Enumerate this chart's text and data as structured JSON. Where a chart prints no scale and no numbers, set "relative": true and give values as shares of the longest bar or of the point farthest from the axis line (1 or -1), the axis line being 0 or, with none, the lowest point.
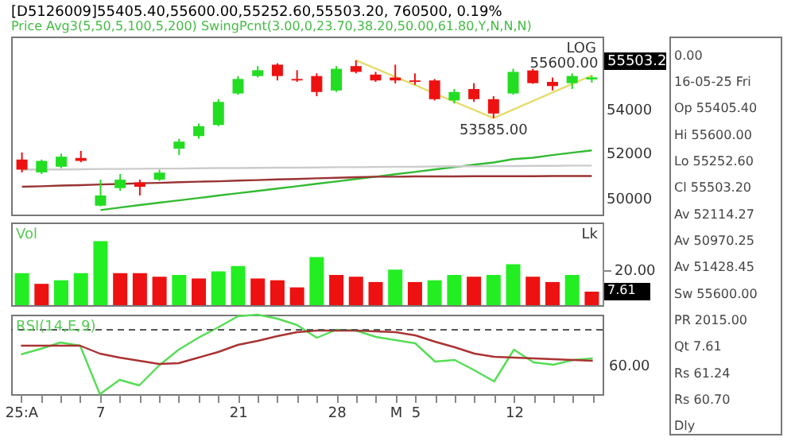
{
  "chart_data": [
    {
      "type": "candlestick",
      "title": "[D5126009]55405.40,55600.00,55252.60,55503.20, 760500, 0.19%",
      "subtitle": "Price Avg3(5,50,5,100,5,200) SwingPcnt(3.00,0,23.70,38.20,50.00,61.80,Y,N,N,N)",
      "categories": [
        null,
        null,
        null,
        null,
        null,
        null,
        null,
        null,
        null,
        null,
        null,
        null,
        null,
        null,
        null,
        null,
        null,
        null,
        null,
        null,
        null,
        null,
        null,
        null,
        null,
        null,
        null,
        null,
        null,
        null
      ],
      "ohlc": [
        [
          51700,
          52020,
          51130,
          51250
        ],
        [
          51130,
          51700,
          51060,
          51640
        ],
        [
          51380,
          51960,
          51320,
          51830
        ],
        [
          51770,
          52090,
          51580,
          51640
        ],
        [
          49680,
          50810,
          49650,
          50120
        ],
        [
          50440,
          51060,
          50320,
          50810
        ],
        [
          50690,
          50810,
          50120,
          50500
        ],
        [
          50810,
          51250,
          50750,
          51120
        ],
        [
          52190,
          52640,
          51900,
          52510
        ],
        [
          52760,
          53340,
          52640,
          53210
        ],
        [
          53270,
          54470,
          53210,
          54340
        ],
        [
          54740,
          55570,
          54675,
          55430
        ],
        [
          55570,
          56050,
          55500,
          55850
        ],
        [
          56120,
          56190,
          55360,
          55570
        ],
        [
          55430,
          55850,
          55290,
          55360
        ],
        [
          55570,
          55700,
          54610,
          54810
        ],
        [
          54880,
          56050,
          54810,
          55920
        ],
        [
          56050,
          56330,
          55700,
          55770
        ],
        [
          55640,
          55770,
          55290,
          55360
        ],
        [
          55500,
          56120,
          55220,
          55360
        ],
        [
          55360,
          55700,
          55150,
          55290
        ],
        [
          55360,
          55430,
          54410,
          54470
        ],
        [
          54410,
          54950,
          54270,
          54810
        ],
        [
          54950,
          55230,
          54340,
          54470
        ],
        [
          54470,
          54610,
          53585,
          53800
        ],
        [
          54740,
          55920,
          54675,
          55770
        ],
        [
          55840,
          55920,
          55200,
          55230
        ],
        [
          55290,
          55500,
          54880,
          55090
        ],
        [
          55230,
          55700,
          54950,
          55570
        ],
        [
          55405.4,
          55600,
          55252.6,
          55503.2
        ]
      ],
      "colors": [
        "#ee1111",
        "#22dd22",
        "#22dd22",
        "#ee1111",
        "#22dd22",
        "#22dd22",
        "#ee1111",
        "#22dd22",
        "#22dd22",
        "#22dd22",
        "#22dd22",
        "#22dd22",
        "#22dd22",
        "#ee1111",
        "#ee1111",
        "#ee1111",
        "#22dd22",
        "#ee1111",
        "#ee1111",
        "#ee1111",
        "#ee1111",
        "#ee1111",
        "#22dd22",
        "#ee1111",
        "#ee1111",
        "#22dd22",
        "#ee1111",
        "#ee1111",
        "#22dd22",
        "#22dd22"
      ],
      "series": [
        {
          "type": "line",
          "color": "#33bb33",
          "values": [
            null,
            null,
            null,
            null,
            49490,
            49600,
            49710,
            49810,
            49910,
            50010,
            50120,
            50220,
            50320,
            50420,
            50520,
            50630,
            50730,
            50840,
            50940,
            51050,
            51150,
            51260,
            51360,
            51470,
            51570,
            51720,
            51780,
            51900,
            52010,
            52110
          ]
        },
        {
          "type": "line",
          "color": "#993333",
          "values": [
            50500,
            50520,
            50550,
            50570,
            50600,
            50620,
            50650,
            50670,
            50700,
            50720,
            50740,
            50770,
            50790,
            50820,
            50840,
            50870,
            50890,
            50920,
            50940,
            50940,
            50950,
            50950,
            50950,
            50960,
            50960,
            50960,
            50960,
            50970,
            50970,
            50970
          ]
        },
        {
          "type": "line",
          "color": "#cccccc",
          "values": [
            51250,
            51260,
            51260,
            51270,
            51280,
            51280,
            51290,
            51300,
            51300,
            51310,
            51320,
            51320,
            51330,
            51340,
            51340,
            51350,
            51360,
            51360,
            51370,
            51380,
            51380,
            51390,
            51400,
            51400,
            51410,
            51410,
            51420,
            51420,
            51430,
            51430
          ]
        },
        {
          "type": "line",
          "color": "#e6dc6e",
          "values": [
            null,
            null,
            null,
            null,
            null,
            null,
            null,
            null,
            null,
            null,
            null,
            null,
            null,
            null,
            null,
            null,
            null,
            56330,
            null,
            null,
            null,
            null,
            null,
            null,
            53585,
            null,
            null,
            null,
            null,
            55600
          ]
        }
      ],
      "log": true,
      "ylim": [
        49300,
        57500
      ],
      "yticks": [
        50000,
        52000,
        54000
      ],
      "tick_labels": "y",
      "annotations": [
        "LOG",
        {
          "text": "55600.00",
          "y": 55600
        },
        {
          "text": "53585.00",
          "y": 53585
        },
        "55503.2"
      ]
    },
    {
      "type": "bar",
      "title": "Vol",
      "ylabel": "Lk",
      "categories": [
        null,
        null,
        null,
        null,
        null,
        null,
        null,
        null,
        null,
        null,
        null,
        null,
        null,
        null,
        null,
        null,
        null,
        null,
        null,
        null,
        null,
        null,
        null,
        null,
        null,
        null,
        null,
        null,
        null,
        null
      ],
      "values": [
        18,
        12,
        14,
        18,
        36,
        18,
        18,
        16,
        17,
        15,
        19,
        22,
        15,
        14,
        10,
        27,
        17,
        16,
        13,
        20,
        13,
        14,
        17,
        16,
        17,
        23,
        16,
        13,
        17,
        7.6
      ],
      "colors": [
        "#22ee22",
        "#ee1111",
        "#22ee22",
        "#22ee22",
        "#22ee22",
        "#ee1111",
        "#ee1111",
        "#ee1111",
        "#22ee22",
        "#ee1111",
        "#22ee22",
        "#22ee22",
        "#ee1111",
        "#ee1111",
        "#ee1111",
        "#22ee22",
        "#ee1111",
        "#ee1111",
        "#ee1111",
        "#22ee22",
        "#ee1111",
        "#22ee22",
        "#22ee22",
        "#ee1111",
        "#22ee22",
        "#22ee22",
        "#ee1111",
        "#ee1111",
        "#22ee22",
        "#ee1111"
      ],
      "annotations": [
        "7.61"
      ],
      "ylim": [
        0,
        46.5
      ],
      "yticks": [
        {
          "value": 20,
          "label": "20.00"
        }
      ],
      "tick_labels": "y"
    },
    {
      "type": "line",
      "title": "RSI(14,E,9)",
      "categories": [
        "25:A",
        null,
        null,
        null,
        "7",
        null,
        null,
        null,
        null,
        null,
        null,
        "21",
        null,
        null,
        null,
        null,
        "28",
        null,
        null,
        "M",
        "5",
        null,
        null,
        null,
        null,
        "12",
        null,
        null,
        null,
        null
      ],
      "series": [
        {
          "color": "#55dd55",
          "values": [
            0.5,
            0.57,
            0.65,
            0.61,
            0,
            0.18,
            0.11,
            0.36,
            0.56,
            0.71,
            0.84,
            0.98,
            1,
            0.95,
            0.87,
            0.71,
            0.81,
            0.8,
            0.72,
            0.68,
            0.64,
            0.41,
            0.43,
            0.3,
            0.16,
            0.56,
            0.4,
            0.37,
            0.43,
            0.45
          ]
        },
        {
          "color": "#aa3333",
          "values": [
            0.61,
            0.61,
            0.61,
            0.61,
            0.51,
            0.46,
            0.42,
            0.38,
            0.39,
            0.46,
            0.53,
            0.62,
            0.67,
            0.73,
            0.78,
            0.8,
            0.8,
            0.8,
            0.79,
            0.78,
            0.74,
            0.66,
            0.59,
            0.51,
            0.47,
            0.46,
            0.45,
            0.44,
            0.43,
            0.42
          ]
        }
      ],
      "relative": true,
      "annotations": [
        "60.00"
      ],
      "ref_lines": [
        {
          "axis": "y",
          "value": 0.81,
          "color": "#555555",
          "line_style": "dashed"
        }
      ]
    },
    {
      "type": "other",
      "annotations": [
        "0.00",
        "16-05-25 Fri",
        "Op 55405.40",
        "Hi 55600.00",
        "Lo 55252.60",
        "Cl 55503.20",
        "Av 52114.27",
        "Av 50970.25",
        "Av 51428.45",
        "Sw 55600.00",
        "PR 2015.00",
        "Qt 7.61",
        "Rs 61.24",
        "Rs 60.70",
        "Dly"
      ]
    }
  ]
}
